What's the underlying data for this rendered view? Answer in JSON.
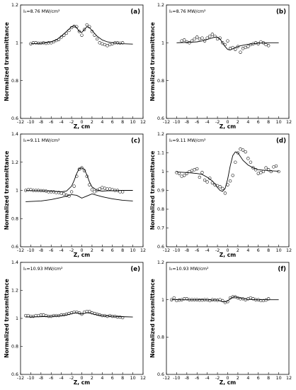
{
  "chart_data": [
    {
      "id": "a",
      "type": "scatter",
      "label": "(a)",
      "annotation": "I₀=8.76 MW/cm²",
      "xlabel": "Z, cm",
      "ylabel": "Normalized transmittance",
      "xlim": [
        -12,
        12
      ],
      "ylim": [
        0.6,
        1.2
      ],
      "xticks": [
        "-12",
        "-10",
        "-8",
        "-6",
        "-4",
        "-2",
        "0",
        "2",
        "4",
        "6",
        "8",
        "10",
        "12"
      ],
      "yticks": [
        "0.6",
        "0.8",
        "1",
        "1.2"
      ],
      "series": [
        {
          "kind": "points",
          "x": [
            -10,
            -9.5,
            -9,
            -8.5,
            -8,
            -7.5,
            -7,
            -6.5,
            -6,
            -5.5,
            -5,
            -4.5,
            -4,
            -3.5,
            -3,
            -2.5,
            -2,
            -1.5,
            -1,
            -0.5,
            0,
            0.5,
            1,
            1.5,
            2,
            2.5,
            3,
            3.5,
            4,
            4.5,
            5,
            5.5,
            6,
            6.5,
            7,
            7.5,
            8
          ],
          "y": [
            0.995,
            1.0,
            1.0,
            0.998,
            0.998,
            1.0,
            0.997,
            1.0,
            1.0,
            1.005,
            1.012,
            1.018,
            1.03,
            1.04,
            1.05,
            1.065,
            1.08,
            1.088,
            1.085,
            1.06,
            1.04,
            1.07,
            1.095,
            1.085,
            1.06,
            1.04,
            1.02,
            1.0,
            0.995,
            0.99,
            0.985,
            0.99,
            0.995,
            1.0,
            1.0,
            0.998,
            1.0
          ]
        },
        {
          "kind": "line",
          "x": [
            -10,
            -8,
            -6,
            -5,
            -4,
            -3,
            -2,
            -1.5,
            -1,
            -0.5,
            0,
            0.5,
            1,
            1.5,
            2,
            3,
            4,
            5,
            6,
            8,
            10
          ],
          "y": [
            0.995,
            0.997,
            1.005,
            1.015,
            1.035,
            1.06,
            1.085,
            1.09,
            1.08,
            1.06,
            1.055,
            1.07,
            1.085,
            1.08,
            1.065,
            1.035,
            1.015,
            1.005,
            1.0,
            0.995,
            0.993
          ]
        }
      ]
    },
    {
      "id": "b",
      "type": "scatter",
      "label": "(b)",
      "annotation": "I₀=8.76 MW/cm²",
      "xlabel": "Z, cm",
      "ylabel": "Normalized transmittance",
      "xlim": [
        -12,
        12
      ],
      "ylim": [
        0.6,
        1.2
      ],
      "xticks": [
        "-12",
        "-10",
        "-8",
        "-6",
        "-4",
        "-2",
        "0",
        "2",
        "4",
        "6",
        "8",
        "10",
        "12"
      ],
      "yticks": [
        "0.6",
        "0.8",
        "1",
        "1.2"
      ],
      "series": [
        {
          "kind": "points",
          "x": [
            -9,
            -8.5,
            -8,
            -7.5,
            -7,
            -6.5,
            -6,
            -5.5,
            -5,
            -4.5,
            -4,
            -3.5,
            -3,
            -2.5,
            -2,
            -1.5,
            -1,
            -0.5,
            0,
            0.5,
            1,
            1.5,
            2,
            2.5,
            3,
            3.5,
            4,
            4.5,
            5,
            5.5,
            6,
            6.5,
            7,
            7.5,
            8
          ],
          "y": [
            1.01,
            1.015,
            1.005,
            1.0,
            1.01,
            1.02,
            1.03,
            1.02,
            1.025,
            1.01,
            1.025,
            1.035,
            1.045,
            1.035,
            1.02,
            1.025,
            1.0,
            0.99,
            1.01,
            0.97,
            0.975,
            0.965,
            0.98,
            0.95,
            0.97,
            0.975,
            0.98,
            0.99,
            0.995,
            1.0,
            0.995,
            1.005,
            1.0,
            0.99,
            0.985
          ]
        },
        {
          "kind": "line",
          "x": [
            -10,
            -8,
            -6,
            -5,
            -4,
            -3,
            -2.5,
            -2,
            -1.5,
            -1,
            -0.5,
            0,
            0.5,
            1,
            1.5,
            2,
            2.5,
            3,
            4,
            5,
            6,
            8,
            10
          ],
          "y": [
            1.0,
            1.002,
            1.005,
            1.01,
            1.018,
            1.026,
            1.03,
            1.03,
            1.02,
            1.0,
            0.98,
            0.965,
            0.962,
            0.968,
            0.975,
            0.98,
            0.984,
            0.987,
            0.992,
            0.995,
            0.998,
            1.0,
            1.0
          ]
        }
      ]
    },
    {
      "id": "c",
      "type": "scatter",
      "label": "(c)",
      "annotation": "I₀=9.11 MW/cm²",
      "xlabel": "Z, cm",
      "ylabel": "Normalized transmittance",
      "xlim": [
        -12,
        12
      ],
      "ylim": [
        0.6,
        1.4
      ],
      "xticks": [
        "-12",
        "-10",
        "-8",
        "-6",
        "-4",
        "-2",
        "0",
        "2",
        "4",
        "6",
        "8",
        "10",
        "12"
      ],
      "yticks": [
        "0.6",
        "0.8",
        "1",
        "1.2",
        "1.4"
      ],
      "series": [
        {
          "kind": "points",
          "x": [
            -11,
            -10.5,
            -10,
            -9.5,
            -9,
            -8.5,
            -8,
            -7.5,
            -7,
            -6.5,
            -6,
            -5.5,
            -5,
            -4.5,
            -4,
            -3.5,
            -3,
            -2.5,
            -2,
            -1.5,
            -1,
            -0.5,
            0,
            0.5,
            1,
            1.5,
            2,
            2.5,
            3,
            3.5,
            4,
            4.5,
            5,
            5.5,
            6,
            6.5,
            7,
            7.5,
            8
          ],
          "y": [
            1.0,
            1.005,
            1.005,
            1.0,
            1.0,
            1.0,
            0.998,
            0.998,
            0.995,
            0.99,
            0.99,
            0.99,
            0.985,
            0.985,
            0.98,
            0.975,
            0.965,
            0.96,
            0.99,
            1.03,
            1.1,
            1.15,
            1.16,
            1.14,
            1.1,
            1.04,
            1.005,
            0.99,
            1.0,
            1.01,
            1.02,
            1.015,
            1.01,
            1.01,
            1.005,
            1.0,
            1.0,
            0.99,
            0.99
          ]
        },
        {
          "kind": "line",
          "x": [
            -11,
            -8,
            -6,
            -4,
            -3,
            -2,
            -1.5,
            -1,
            -0.5,
            0,
            0.5,
            1,
            1.5,
            2,
            3,
            4,
            5,
            6,
            8,
            10
          ],
          "y": [
            0.999,
            0.998,
            0.995,
            0.99,
            0.995,
            1.03,
            1.07,
            1.12,
            1.155,
            1.16,
            1.15,
            1.11,
            1.06,
            1.025,
            1.0,
            0.995,
            0.997,
            0.998,
            1.0,
            1.0
          ]
        },
        {
          "kind": "line",
          "x": [
            -11,
            -8,
            -6,
            -4,
            -3,
            -2,
            -1,
            0,
            1,
            2,
            3,
            4,
            6,
            8,
            10
          ],
          "y": [
            0.92,
            0.925,
            0.935,
            0.95,
            0.96,
            0.97,
            0.965,
            0.945,
            0.96,
            0.975,
            0.965,
            0.955,
            0.94,
            0.93,
            0.925
          ]
        }
      ]
    },
    {
      "id": "d",
      "type": "scatter",
      "label": "(d)",
      "annotation": "I₀=9.11 MW/cm²",
      "xlabel": "Z, cm",
      "ylabel": "Normalized transmittance",
      "xlim": [
        -12,
        12
      ],
      "ylim": [
        0.6,
        1.2
      ],
      "xticks": [
        "-12",
        "-10",
        "-8",
        "-6",
        "-4",
        "-2",
        "0",
        "2",
        "4",
        "6",
        "8",
        "10",
        "12"
      ],
      "yticks": [
        "0.6",
        "0.7",
        "0.8",
        "0.9",
        "1",
        "1.1",
        "1.2"
      ],
      "series": [
        {
          "kind": "points",
          "x": [
            -10,
            -9.5,
            -9,
            -8.5,
            -8,
            -7.5,
            -7,
            -6.5,
            -6,
            -5.5,
            -5,
            -4.5,
            -4,
            -3.5,
            -3,
            -2.5,
            -2,
            -1.5,
            -1,
            -0.5,
            0,
            0.5,
            1,
            1.5,
            2,
            2.5,
            3,
            3.5,
            4,
            4.5,
            5,
            5.5,
            6,
            6.5,
            7,
            7.5,
            8,
            8.5,
            9,
            9.5,
            10
          ],
          "y": [
            0.995,
            0.99,
            0.975,
            0.98,
            0.99,
            1.0,
            1.005,
            1.01,
            1.015,
            0.97,
            0.995,
            0.955,
            0.945,
            0.965,
            0.94,
            0.93,
            0.925,
            0.92,
            0.91,
            0.885,
            0.93,
            0.95,
            0.98,
            1.05,
            1.1,
            1.12,
            1.115,
            1.105,
            1.07,
            1.05,
            1.02,
            1.01,
            0.99,
            0.995,
            1.0,
            1.02,
            1.01,
            1.0,
            1.025,
            1.03,
            1.0
          ]
        },
        {
          "kind": "line",
          "x": [
            -10,
            -8,
            -6,
            -5,
            -4,
            -3,
            -2.5,
            -2,
            -1.5,
            -1,
            -0.5,
            0,
            0.5,
            1,
            1.5,
            2,
            2.5,
            3,
            4,
            5,
            6,
            8,
            10
          ],
          "y": [
            0.998,
            0.995,
            0.99,
            0.985,
            0.97,
            0.95,
            0.935,
            0.915,
            0.9,
            0.895,
            0.91,
            0.96,
            1.03,
            1.085,
            1.105,
            1.1,
            1.08,
            1.06,
            1.035,
            1.02,
            1.01,
            1.005,
            1.002
          ]
        }
      ]
    },
    {
      "id": "e",
      "type": "scatter",
      "label": "(e)",
      "annotation": "I₀=10.93 MW/cm²",
      "xlabel": "Z, cm",
      "ylabel": "Normalized transmittance",
      "xlim": [
        -12,
        12
      ],
      "ylim": [
        0.6,
        1.4
      ],
      "xticks": [
        "-12",
        "-10",
        "-8",
        "-6",
        "-4",
        "-2",
        "0",
        "2",
        "4",
        "6",
        "8",
        "10",
        "12"
      ],
      "yticks": [
        "0.6",
        "0.8",
        "1",
        "1.2",
        "1.4"
      ],
      "series": [
        {
          "kind": "points",
          "x": [
            -11,
            -10.5,
            -10,
            -9.5,
            -9,
            -8.5,
            -8,
            -7.5,
            -7,
            -6.5,
            -6,
            -5.5,
            -5,
            -4.5,
            -4,
            -3.5,
            -3,
            -2.5,
            -2,
            -1.5,
            -1,
            -0.5,
            0,
            0.5,
            1,
            1.5,
            2,
            2.5,
            3,
            3.5,
            4,
            4.5,
            5,
            5.5,
            6,
            6.5,
            7,
            7.5,
            8
          ],
          "y": [
            1.02,
            1.02,
            1.015,
            1.015,
            1.02,
            1.02,
            1.025,
            1.025,
            1.02,
            1.015,
            1.015,
            1.02,
            1.02,
            1.02,
            1.025,
            1.025,
            1.03,
            1.035,
            1.04,
            1.045,
            1.045,
            1.04,
            1.03,
            1.045,
            1.05,
            1.05,
            1.04,
            1.035,
            1.03,
            1.025,
            1.02,
            1.02,
            1.015,
            1.02,
            1.015,
            1.015,
            1.01,
            1.01,
            1.005
          ]
        },
        {
          "kind": "line",
          "x": [
            -11,
            -8,
            -6,
            -4,
            -3,
            -2,
            -1.5,
            -1,
            -0.5,
            0,
            0.5,
            1,
            1.5,
            2,
            3,
            4,
            6,
            8,
            10
          ],
          "y": [
            1.01,
            1.012,
            1.015,
            1.02,
            1.025,
            1.033,
            1.038,
            1.04,
            1.035,
            1.03,
            1.035,
            1.04,
            1.038,
            1.033,
            1.025,
            1.02,
            1.015,
            1.012,
            1.01
          ]
        }
      ]
    },
    {
      "id": "f",
      "type": "scatter",
      "label": "(f)",
      "annotation": "I₀=10.93 MW/cm²",
      "xlabel": "Z, cm",
      "ylabel": "Normalized transmittance",
      "xlim": [
        -12,
        12
      ],
      "ylim": [
        0.6,
        1.2
      ],
      "xticks": [
        "-12",
        "-10",
        "-8",
        "-6",
        "-4",
        "-2",
        "0",
        "2",
        "4",
        "6",
        "8",
        "10",
        "12"
      ],
      "yticks": [
        "0.6",
        "0.8",
        "1",
        "1.2"
      ],
      "series": [
        {
          "kind": "points",
          "x": [
            -11,
            -10.5,
            -10,
            -9.5,
            -9,
            -8.5,
            -8,
            -7.5,
            -7,
            -6.5,
            -6,
            -5.5,
            -5,
            -4.5,
            -4,
            -3.5,
            -3,
            -2.5,
            -2,
            -1.5,
            -1,
            -0.5,
            0,
            0.5,
            1,
            1.5,
            2,
            2.5,
            3,
            3.5,
            4,
            4.5,
            5,
            5.5,
            6,
            6.5,
            7,
            7.5,
            8
          ],
          "y": [
            1.0,
            1.01,
            0.995,
            0.998,
            1.0,
            1.005,
            1.005,
            1.0,
            1.0,
            1.0,
            1.0,
            0.998,
            0.998,
            1.0,
            1.0,
            0.995,
            1.0,
            0.998,
            0.997,
            1.0,
            0.995,
            0.985,
            0.99,
            1.01,
            1.015,
            1.015,
            1.01,
            1.005,
            1.005,
            1.0,
            1.005,
            1.01,
            1.005,
            1.0,
            1.0,
            0.995,
            0.995,
            0.998,
            1.005
          ]
        },
        {
          "kind": "line",
          "x": [
            -11,
            -8,
            -6,
            -4,
            -2,
            -1,
            -0.5,
            0,
            0.5,
            1,
            1.5,
            2,
            3,
            4,
            6,
            8,
            10
          ],
          "y": [
            1.0,
            1.0,
            1.0,
            1.0,
            0.998,
            0.99,
            0.988,
            0.993,
            1.005,
            1.013,
            1.015,
            1.012,
            1.005,
            1.002,
            1.0,
            1.0,
            1.0
          ]
        }
      ]
    }
  ]
}
